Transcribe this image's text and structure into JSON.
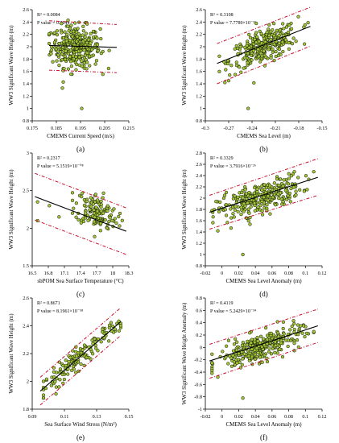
{
  "chart_data": [
    {
      "type": "scatter",
      "panel_label": "(a)",
      "xlabel": "CMEMS Current Speed (m/s)",
      "ylabel": "WW3 Significant Wave Height (m)",
      "r2": "R² = 0.0084",
      "pvalue": "P value = 0.0944",
      "xlim": [
        0.175,
        0.215
      ],
      "ylim": [
        0.8,
        2.6
      ],
      "xticks": [
        0.175,
        0.185,
        0.195,
        0.205,
        0.215
      ],
      "xtick_labels": [
        "0.175",
        "0.185",
        "0.195",
        "0.205",
        "0.215"
      ],
      "yticks": [
        0.8,
        1.0,
        1.2,
        1.4,
        1.6,
        1.8,
        2.0,
        2.2,
        2.4,
        2.6
      ],
      "ytick_labels": [
        "0.8",
        "1",
        "1.2",
        "1.4",
        "1.6",
        "1.8",
        "2",
        "2.2",
        "2.4",
        "2.6"
      ],
      "fit": {
        "x": [
          0.182,
          0.21
        ],
        "y": [
          2.02,
          1.99
        ]
      },
      "bounds": [
        {
          "x": [
            0.182,
            0.21
          ],
          "y": [
            2.42,
            2.36
          ]
        },
        {
          "x": [
            0.182,
            0.21
          ],
          "y": [
            1.62,
            1.58
          ]
        }
      ],
      "cloud": {
        "n": 320,
        "xrange": [
          0.182,
          0.21
        ],
        "xcenter": 0.193,
        "xspread": 0.005,
        "slope": -1.0,
        "ymid": 2.0,
        "yspread": 0.17
      },
      "outliers": [
        {
          "x": 0.1955,
          "y": 1.0
        },
        {
          "x": 0.1875,
          "y": 1.33
        }
      ]
    },
    {
      "type": "scatter",
      "panel_label": "(b)",
      "xlabel": "CMEMS Sea Level (m)",
      "ylabel": "WW3 Significant Wave Height (m)",
      "r2": "R² = 0.3108",
      "pvalue": "P value = 7.7789×10⁻²³",
      "xlim": [
        -0.3,
        -0.15
      ],
      "ylim": [
        0.8,
        2.6
      ],
      "xticks": [
        -0.3,
        -0.27,
        -0.24,
        -0.21,
        -0.18,
        -0.15
      ],
      "xtick_labels": [
        "-0.3",
        "-0.27",
        "-0.24",
        "-0.21",
        "-0.18",
        "-0.15"
      ],
      "yticks": [
        0.8,
        1.0,
        1.2,
        1.4,
        1.6,
        1.8,
        2.0,
        2.2,
        2.4,
        2.6
      ],
      "ytick_labels": [
        "0.8",
        "1",
        "1.2",
        "1.4",
        "1.6",
        "1.8",
        "2",
        "2.2",
        "2.4",
        "2.6"
      ],
      "fit": {
        "x": [
          -0.285,
          -0.165
        ],
        "y": [
          1.73,
          2.33
        ]
      },
      "bounds": [
        {
          "x": [
            -0.285,
            -0.165
          ],
          "y": [
            2.05,
            2.64
          ]
        },
        {
          "x": [
            -0.285,
            -0.165
          ],
          "y": [
            1.4,
            2.01
          ]
        }
      ],
      "cloud": {
        "n": 300,
        "xrange": [
          -0.282,
          -0.168
        ],
        "xcenter": -0.225,
        "xspread": 0.022,
        "slope": 5.0,
        "ymid": 2.0,
        "yspread": 0.13
      },
      "outliers": [
        {
          "x": -0.245,
          "y": 1.0
        },
        {
          "x": -0.27,
          "y": 1.45
        }
      ]
    },
    {
      "type": "scatter",
      "panel_label": "(c)",
      "xlabel": "sbPOM Sea Surface Temperature (°C)",
      "ylabel": "WW3 Significant Wave Height (m)",
      "r2": "R² = 0.2317",
      "pvalue": "P value = 5.1519×10⁻⁰⁸",
      "xlim": [
        16.5,
        18.3
      ],
      "ylim": [
        1.5,
        3.0
      ],
      "xticks": [
        16.5,
        16.8,
        17.1,
        17.4,
        17.7,
        18.0,
        18.3
      ],
      "xtick_labels": [
        "16.5",
        "16.8",
        "17.1",
        "17.4",
        "17.7",
        "18",
        "18.3"
      ],
      "yticks": [
        1.5,
        2.0,
        2.5,
        3.0
      ],
      "ytick_labels": [
        "1.5",
        "2",
        "2.5",
        "3"
      ],
      "fit": {
        "x": [
          16.55,
          18.25
        ],
        "y": [
          2.42,
          1.96
        ]
      },
      "bounds": [
        {
          "x": [
            16.55,
            18.25
          ],
          "y": [
            2.73,
            2.27
          ]
        },
        {
          "x": [
            16.55,
            18.25
          ],
          "y": [
            2.11,
            1.65
          ]
        }
      ],
      "cloud": {
        "n": 140,
        "xrange": [
          17.25,
          18.25
        ],
        "xcenter": 17.7,
        "xspread": 0.2,
        "slope": -0.27,
        "ymid": 2.22,
        "yspread": 0.12
      },
      "outliers": [
        {
          "x": 16.6,
          "y": 2.35
        },
        {
          "x": 16.6,
          "y": 2.1
        },
        {
          "x": 16.82,
          "y": 2.3
        },
        {
          "x": 17.0,
          "y": 2.15
        }
      ]
    },
    {
      "type": "scatter",
      "panel_label": "(d)",
      "xlabel": "CMEMS Sea Level Anomaly (m)",
      "ylabel": "WW3 Significant Wave Height (m)",
      "r2": "R² = 0.3329",
      "pvalue": "P value = 3.7916×10⁻²⁶",
      "xlim": [
        -0.02,
        0.12
      ],
      "ylim": [
        0.8,
        2.8
      ],
      "xticks": [
        -0.02,
        0,
        0.02,
        0.04,
        0.06,
        0.08,
        0.1,
        0.12
      ],
      "xtick_labels": [
        "-0.02",
        "0",
        "0.02",
        "0.04",
        "0.06",
        "0.08",
        "0.1",
        "0.12"
      ],
      "yticks": [
        0.8,
        1.0,
        1.2,
        1.4,
        1.6,
        1.8,
        2.0,
        2.2,
        2.4,
        2.6,
        2.8
      ],
      "ytick_labels": [
        "0.8",
        "1",
        "1.2",
        "1.4",
        "1.6",
        "1.8",
        "2",
        "2.2",
        "2.4",
        "2.6",
        "2.8"
      ],
      "fit": {
        "x": [
          -0.015,
          0.115
        ],
        "y": [
          1.75,
          2.37
        ]
      },
      "bounds": [
        {
          "x": [
            -0.015,
            0.115
          ],
          "y": [
            2.05,
            2.7
          ]
        },
        {
          "x": [
            -0.015,
            0.115
          ],
          "y": [
            1.45,
            2.05
          ]
        }
      ],
      "cloud": {
        "n": 300,
        "xrange": [
          -0.012,
          0.11
        ],
        "xcenter": 0.045,
        "xspread": 0.025,
        "slope": 4.8,
        "ymid": 2.0,
        "yspread": 0.13
      },
      "outliers": [
        {
          "x": 0.025,
          "y": 1.0
        },
        {
          "x": -0.005,
          "y": 1.42
        }
      ]
    },
    {
      "type": "scatter",
      "panel_label": "(e)",
      "xlabel": "Sea Surface Wind Stress (N/m²)",
      "ylabel": "WW3 Significant Wave Height (m)",
      "r2": "R² = 0.8671",
      "pvalue": "P value = 8.1961×10⁻⁵⁸",
      "xlim": [
        0.09,
        0.15
      ],
      "ylim": [
        1.8,
        2.6
      ],
      "xticks": [
        0.09,
        0.11,
        0.13,
        0.15
      ],
      "xtick_labels": [
        "0.09",
        "0.11",
        "0.13",
        "0.15"
      ],
      "yticks": [
        1.8,
        2.0,
        2.2,
        2.4,
        2.6
      ],
      "ytick_labels": [
        "1.8",
        "2",
        "2.2",
        "2.4",
        "2.6"
      ],
      "fit": {
        "x": [
          0.095,
          0.145
        ],
        "y": [
          1.93,
          2.43
        ]
      },
      "bounds": [
        {
          "x": [
            0.095,
            0.145
          ],
          "y": [
            2.03,
            2.53
          ]
        },
        {
          "x": [
            0.095,
            0.145
          ],
          "y": [
            1.83,
            2.33
          ]
        }
      ],
      "cloud": {
        "n": 150,
        "xrange": [
          0.097,
          0.145
        ],
        "xcenter": 0.12,
        "xspread": 0.012,
        "slope": 10.0,
        "ymid": 2.18,
        "yspread": 0.04
      },
      "outliers": []
    },
    {
      "type": "scatter",
      "panel_label": "(f)",
      "xlabel": "CMEMS Sea Level Anomaly (m)",
      "ylabel": "WW3 Significant Wave Height Anomaly (m)",
      "r2": "R² = 0.4119",
      "pvalue": "P value = 5.2429×10⁻³⁴",
      "xlim": [
        -0.02,
        0.12
      ],
      "ylim": [
        -1.0,
        0.8
      ],
      "xticks": [
        -0.02,
        0,
        0.02,
        0.04,
        0.06,
        0.08,
        0.1,
        0.12
      ],
      "xtick_labels": [
        "-0.02",
        "0",
        "0.02",
        "0.04",
        "0.06",
        "0.08",
        "0.1",
        "0.12"
      ],
      "yticks": [
        -1.0,
        -0.8,
        -0.6,
        -0.4,
        -0.2,
        0,
        0.2,
        0.4,
        0.6,
        0.8
      ],
      "ytick_labels": [
        "-1",
        "-0.8",
        "-0.6",
        "-0.4",
        "-0.2",
        "0",
        "0.2",
        "0.4",
        "0.6",
        "0.8"
      ],
      "fit": {
        "x": [
          -0.015,
          0.115
        ],
        "y": [
          -0.22,
          0.35
        ]
      },
      "bounds": [
        {
          "x": [
            -0.015,
            0.115
          ],
          "y": [
            0.05,
            0.62
          ]
        },
        {
          "x": [
            -0.015,
            0.115
          ],
          "y": [
            -0.5,
            0.08
          ]
        }
      ],
      "cloud": {
        "n": 300,
        "xrange": [
          -0.012,
          0.11
        ],
        "xcenter": 0.045,
        "xspread": 0.025,
        "slope": 4.4,
        "ymid": 0.0,
        "yspread": 0.11
      },
      "outliers": [
        {
          "x": 0.025,
          "y": -0.82
        },
        {
          "x": -0.005,
          "y": -0.48
        }
      ]
    }
  ]
}
